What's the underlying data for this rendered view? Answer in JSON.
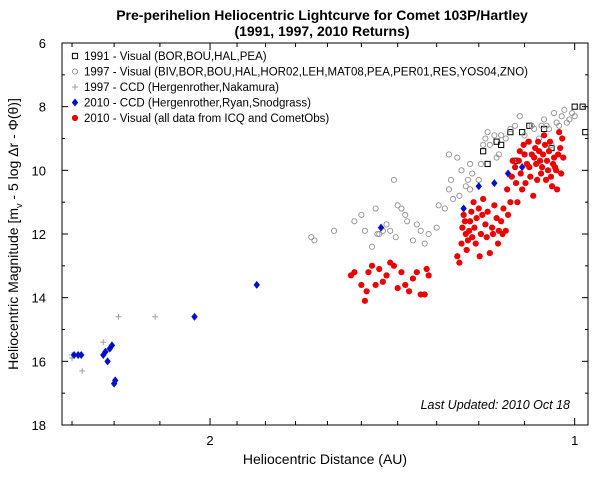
{
  "chart_data": {
    "type": "scatter",
    "title": "Pre-perihelion Heliocentric Lightcurve for Comet 103P/Hartley",
    "subtitle": "(1991, 1997, 2010 Returns)",
    "xlabel": "Heliocentric Distance (AU)",
    "ylabel": "Heliocentric Magnitude [m",
    "ylabel_sub": "v",
    "ylabel_tail": " - 5 log Δr - Φ(θ)]",
    "x_scale": "log-reversed",
    "xlim": [
      2.65,
      0.975
    ],
    "ylim": [
      18,
      6
    ],
    "x_ticks": [
      {
        "value": 2,
        "label": "2"
      },
      {
        "value": 1,
        "label": "1"
      }
    ],
    "y_ticks": [
      6,
      8,
      10,
      12,
      14,
      16,
      18
    ],
    "grid": false,
    "legend_position": "top-left",
    "annotation": "Last Updated: 2010 Oct 18",
    "series": [
      {
        "name": "1991 - Visual (BOR,BOU,HAL,PEA)",
        "marker": "open-square",
        "color": "#000000",
        "points": [
          [
            1.19,
            9.4
          ],
          [
            1.18,
            9.8
          ],
          [
            1.16,
            9.1
          ],
          [
            1.15,
            9.2
          ],
          [
            1.13,
            8.8
          ],
          [
            1.12,
            9.7
          ],
          [
            1.105,
            8.8
          ],
          [
            1.09,
            8.6
          ],
          [
            1.06,
            8.7
          ],
          [
            1.045,
            9.3
          ],
          [
            1.0,
            8.0
          ],
          [
            0.985,
            8.0
          ],
          [
            0.98,
            8.8
          ]
        ]
      },
      {
        "name": "1997 - Visual (BIV,BOR,BOU,HAL,HOR02,LEH,MAT08,PEA,PER01,RES,YOS04,ZNO)",
        "marker": "open-circle",
        "color": "#909090",
        "points": [
          [
            1.65,
            12.1
          ],
          [
            1.64,
            12.2
          ],
          [
            1.58,
            11.9
          ],
          [
            1.52,
            11.6
          ],
          [
            1.5,
            11.4
          ],
          [
            1.49,
            11.9
          ],
          [
            1.47,
            12.4
          ],
          [
            1.46,
            11.2
          ],
          [
            1.455,
            12.0
          ],
          [
            1.45,
            12.0
          ],
          [
            1.44,
            11.9
          ],
          [
            1.43,
            11.7
          ],
          [
            1.42,
            11.9
          ],
          [
            1.41,
            10.3
          ],
          [
            1.405,
            12.1
          ],
          [
            1.4,
            11.1
          ],
          [
            1.39,
            11.2
          ],
          [
            1.38,
            11.4
          ],
          [
            1.375,
            11.6
          ],
          [
            1.36,
            12.2
          ],
          [
            1.35,
            11.7
          ],
          [
            1.34,
            11.9
          ],
          [
            1.33,
            12.3
          ],
          [
            1.32,
            12.0
          ],
          [
            1.3,
            11.8
          ],
          [
            1.295,
            11.1
          ],
          [
            1.28,
            11.2
          ],
          [
            1.27,
            10.6
          ],
          [
            1.265,
            10.3
          ],
          [
            1.26,
            10.9
          ],
          [
            1.25,
            9.6
          ],
          [
            1.245,
            10.8
          ],
          [
            1.24,
            10.0
          ],
          [
            1.23,
            10.5
          ],
          [
            1.225,
            10.3
          ],
          [
            1.22,
            10.6
          ],
          [
            1.215,
            10.1
          ],
          [
            1.2,
            10.3
          ],
          [
            1.195,
            9.8
          ],
          [
            1.19,
            9.2
          ],
          [
            1.185,
            9.0
          ],
          [
            1.18,
            8.8
          ],
          [
            1.175,
            9.2
          ],
          [
            1.165,
            8.9
          ],
          [
            1.16,
            9.6
          ],
          [
            1.155,
            9.5
          ],
          [
            1.15,
            8.9
          ],
          [
            1.14,
            9.0
          ],
          [
            1.13,
            8.7
          ],
          [
            1.125,
            9.7
          ],
          [
            1.12,
            8.6
          ],
          [
            1.11,
            8.3
          ],
          [
            1.1,
            8.9
          ],
          [
            1.09,
            9.1
          ],
          [
            1.085,
            8.6
          ],
          [
            1.08,
            8.7
          ],
          [
            1.07,
            9.0
          ],
          [
            1.065,
            8.6
          ],
          [
            1.06,
            8.4
          ],
          [
            1.055,
            8.6
          ],
          [
            1.05,
            8.7
          ],
          [
            1.045,
            9.2
          ],
          [
            1.04,
            8.2
          ],
          [
            1.035,
            8.5
          ],
          [
            1.03,
            8.6
          ],
          [
            1.025,
            8.3
          ],
          [
            1.02,
            8.1
          ],
          [
            1.015,
            8.5
          ],
          [
            1.01,
            8.4
          ],
          [
            1.005,
            8.2
          ],
          [
            1.0,
            8.3
          ],
          [
            1.22,
            9.8
          ],
          [
            1.27,
            9.5
          ]
        ]
      },
      {
        "name": "1997 - CCD (Hergenrother,Nakamura)",
        "marker": "plus",
        "color": "#a0a0a0",
        "points": [
          [
            2.6,
            15.8
          ],
          [
            2.6,
            15.9
          ],
          [
            2.55,
            16.3
          ],
          [
            2.45,
            15.4
          ],
          [
            2.38,
            14.6
          ],
          [
            2.22,
            14.6
          ]
        ]
      },
      {
        "name": "2010 - CCD (Hergenrother,Ryan,Snodgrass)",
        "marker": "diamond",
        "color": "#0010c8",
        "points": [
          [
            2.59,
            15.8
          ],
          [
            2.57,
            15.8
          ],
          [
            2.555,
            15.8
          ],
          [
            2.45,
            15.8
          ],
          [
            2.44,
            15.7
          ],
          [
            2.43,
            16.0
          ],
          [
            2.42,
            15.6
          ],
          [
            2.41,
            15.5
          ],
          [
            2.4,
            16.7
          ],
          [
            2.395,
            16.6
          ],
          [
            2.06,
            14.6
          ],
          [
            1.83,
            13.6
          ],
          [
            1.445,
            11.8
          ],
          [
            1.235,
            11.2
          ],
          [
            1.2,
            10.5
          ],
          [
            1.165,
            10.4
          ],
          [
            1.135,
            10.1
          ],
          [
            1.105,
            9.9
          ]
        ]
      },
      {
        "name": "2010 - Visual (all data from ICQ and CometObs)",
        "marker": "filled-circle",
        "color": "#ee0000",
        "points": [
          [
            1.53,
            13.3
          ],
          [
            1.52,
            13.2
          ],
          [
            1.5,
            13.6
          ],
          [
            1.49,
            14.1
          ],
          [
            1.485,
            13.8
          ],
          [
            1.48,
            13.2
          ],
          [
            1.47,
            13.0
          ],
          [
            1.46,
            13.6
          ],
          [
            1.45,
            13.1
          ],
          [
            1.44,
            13.5
          ],
          [
            1.43,
            13.3
          ],
          [
            1.42,
            12.9
          ],
          [
            1.41,
            13.0
          ],
          [
            1.4,
            13.7
          ],
          [
            1.39,
            13.2
          ],
          [
            1.38,
            13.6
          ],
          [
            1.37,
            13.8
          ],
          [
            1.36,
            13.4
          ],
          [
            1.35,
            13.2
          ],
          [
            1.34,
            13.9
          ],
          [
            1.33,
            13.9
          ],
          [
            1.32,
            13.3
          ],
          [
            1.325,
            13.1
          ],
          [
            1.25,
            12.7
          ],
          [
            1.245,
            12.9
          ],
          [
            1.24,
            12.3
          ],
          [
            1.238,
            11.8
          ],
          [
            1.235,
            11.4
          ],
          [
            1.232,
            11.6
          ],
          [
            1.23,
            12.0
          ],
          [
            1.228,
            12.5
          ],
          [
            1.225,
            12.2
          ],
          [
            1.222,
            11.9
          ],
          [
            1.22,
            11.6
          ],
          [
            1.217,
            11.3
          ],
          [
            1.215,
            12.1
          ],
          [
            1.212,
            11.0
          ],
          [
            1.21,
            11.8
          ],
          [
            1.207,
            12.3
          ],
          [
            1.205,
            11.5
          ],
          [
            1.2,
            11.2
          ],
          [
            1.198,
            12.7
          ],
          [
            1.195,
            12.0
          ],
          [
            1.192,
            11.4
          ],
          [
            1.19,
            10.9
          ],
          [
            1.185,
            11.7
          ],
          [
            1.182,
            12.1
          ],
          [
            1.18,
            11.3
          ],
          [
            1.175,
            12.6
          ],
          [
            1.17,
            11.8
          ],
          [
            1.168,
            12.0
          ],
          [
            1.165,
            11.1
          ],
          [
            1.16,
            11.5
          ],
          [
            1.157,
            12.3
          ],
          [
            1.155,
            11.9
          ],
          [
            1.15,
            11.6
          ],
          [
            1.147,
            12.0
          ],
          [
            1.145,
            11.2
          ],
          [
            1.14,
            11.9
          ],
          [
            1.137,
            10.6
          ],
          [
            1.135,
            11.4
          ],
          [
            1.13,
            11.0
          ],
          [
            1.127,
            10.2
          ],
          [
            1.125,
            9.7
          ],
          [
            1.12,
            9.9
          ],
          [
            1.118,
            10.4
          ],
          [
            1.115,
            11.0
          ],
          [
            1.112,
            9.7
          ],
          [
            1.11,
            9.4
          ],
          [
            1.108,
            10.1
          ],
          [
            1.105,
            10.6
          ],
          [
            1.102,
            9.2
          ],
          [
            1.1,
            9.5
          ],
          [
            1.098,
            10.4
          ],
          [
            1.095,
            9.8
          ],
          [
            1.092,
            9.1
          ],
          [
            1.09,
            9.9
          ],
          [
            1.088,
            10.2
          ],
          [
            1.085,
            9.5
          ],
          [
            1.082,
            10.8
          ],
          [
            1.08,
            9.6
          ],
          [
            1.078,
            9.3
          ],
          [
            1.076,
            9.8
          ],
          [
            1.074,
            10.3
          ],
          [
            1.072,
            9.1
          ],
          [
            1.07,
            9.4
          ],
          [
            1.068,
            9.7
          ],
          [
            1.066,
            10.1
          ],
          [
            1.064,
            9.9
          ],
          [
            1.062,
            9.5
          ],
          [
            1.06,
            8.9
          ],
          [
            1.058,
            9.2
          ],
          [
            1.056,
            10.3
          ],
          [
            1.054,
            9.7
          ],
          [
            1.052,
            10.0
          ],
          [
            1.05,
            9.4
          ],
          [
            1.048,
            9.1
          ],
          [
            1.046,
            10.2
          ],
          [
            1.044,
            10.5
          ],
          [
            1.042,
            9.8
          ],
          [
            1.04,
            9.6
          ],
          [
            1.038,
            9.9
          ],
          [
            1.036,
            10.0
          ],
          [
            1.034,
            10.6
          ],
          [
            1.032,
            9.5
          ],
          [
            1.03,
            8.8
          ],
          [
            1.028,
            9.3
          ],
          [
            1.026,
            10.1
          ],
          [
            1.024,
            9.0
          ],
          [
            1.022,
            9.6
          ]
        ]
      }
    ]
  }
}
